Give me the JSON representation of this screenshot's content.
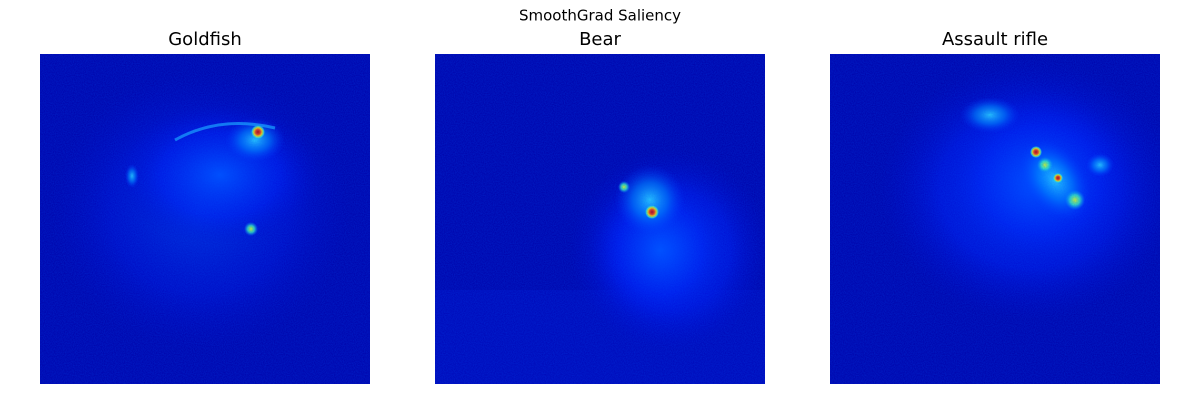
{
  "title": "SmoothGrad Saliency",
  "panels": [
    {
      "title": "Goldfish"
    },
    {
      "title": "Bear"
    },
    {
      "title": "Assault rifle"
    }
  ]
}
